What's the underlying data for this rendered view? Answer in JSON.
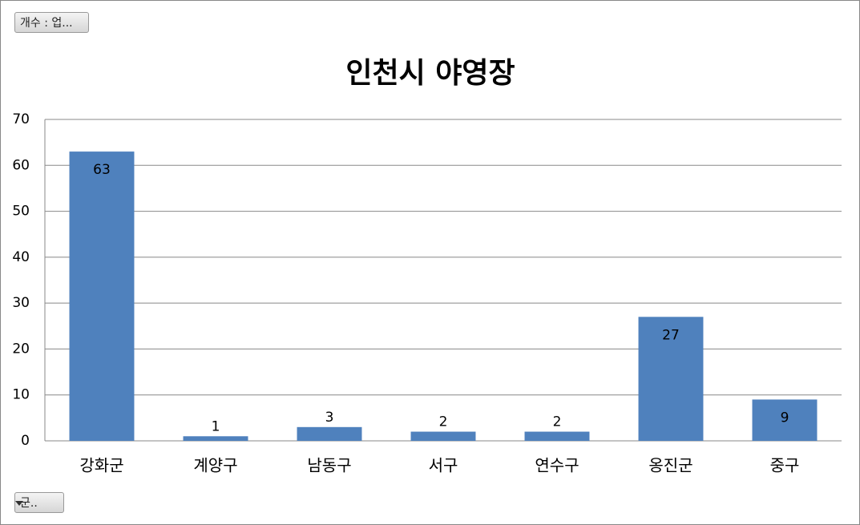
{
  "chart_data": {
    "type": "bar",
    "title": "인천시 야영장",
    "value_field_button": "개수 : 업...",
    "axis_field_button": "군..",
    "categories": [
      "강화군",
      "계양구",
      "남동구",
      "서구",
      "연수구",
      "옹진군",
      "중구"
    ],
    "values": [
      63,
      1,
      3,
      2,
      2,
      27,
      9
    ],
    "color": "#4f81bd",
    "ylim": [
      0,
      70
    ],
    "yticks": [
      0,
      10,
      20,
      30,
      40,
      50,
      60,
      70
    ],
    "grid": true
  }
}
